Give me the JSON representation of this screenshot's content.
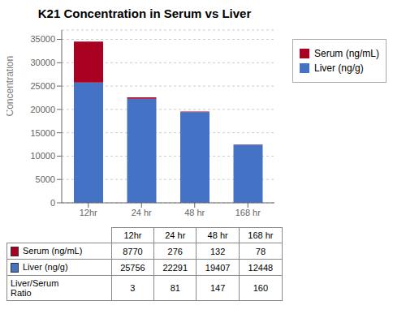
{
  "chart_data": {
    "type": "bar",
    "title": "K21 Concentration in Serum vs Liver",
    "categories": [
      "12hr",
      "24 hr",
      "48 hr",
      "168 hr"
    ],
    "series": [
      {
        "name": "Serum (ng/mL)",
        "color": "#AA0022",
        "values": [
          8770,
          276,
          132,
          78
        ]
      },
      {
        "name": "Liver (ng/g)",
        "color": "#4472C4",
        "values": [
          25756,
          22291,
          19407,
          12448
        ]
      }
    ],
    "stacked": true,
    "ylabel": "Concentration",
    "ylim": [
      0,
      37000
    ],
    "yticks": [
      0,
      5000,
      10000,
      15000,
      20000,
      25000,
      30000,
      35000
    ],
    "grid": true,
    "legend": "right",
    "ratio": {
      "name": "Liver/Serum\nRatio",
      "values": [
        3,
        81,
        147,
        160
      ]
    }
  }
}
